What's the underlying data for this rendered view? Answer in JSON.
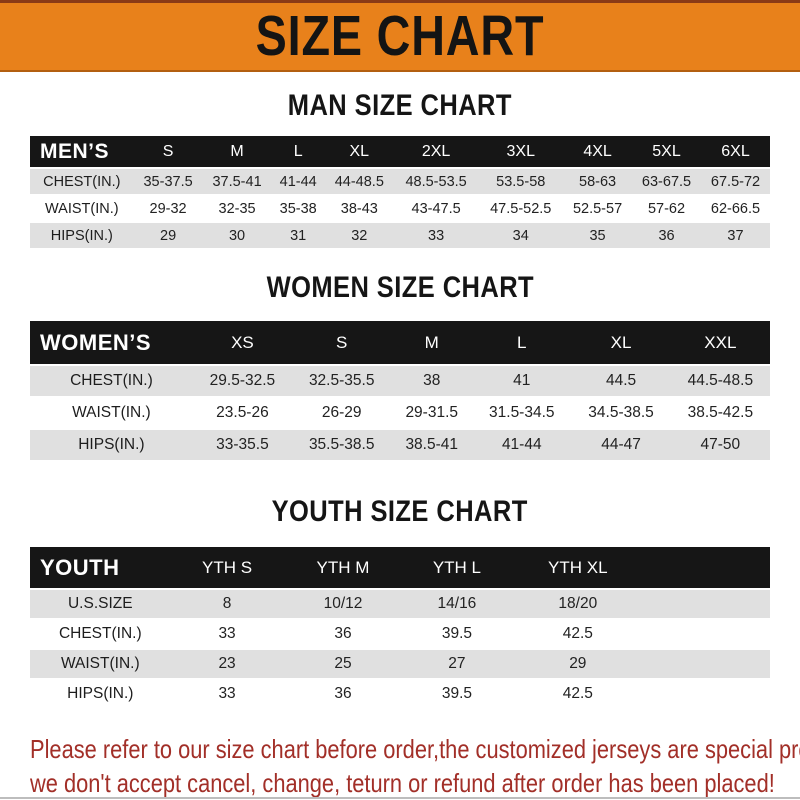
{
  "title": "SIZE CHART",
  "colors": {
    "banner_orange": "#E8811B",
    "header_bar_black": "#161616",
    "row_stripe_gray": "#E0E0E0",
    "footer_red": "#A22F28"
  },
  "sections": {
    "men": {
      "heading": "MAN SIZE CHART",
      "table": {
        "label": "MEN’S",
        "columns": [
          "S",
          "M",
          "L",
          "XL",
          "2XL",
          "3XL",
          "4XL",
          "5XL",
          "6XL"
        ],
        "rows": [
          {
            "label": "CHEST(IN.)",
            "values": [
              "35-37.5",
              "37.5-41",
              "41-44",
              "44-48.5",
              "48.5-53.5",
              "53.5-58",
              "58-63",
              "63-67.5",
              "67.5-72"
            ]
          },
          {
            "label": "WAIST(IN.)",
            "values": [
              "29-32",
              "32-35",
              "35-38",
              "38-43",
              "43-47.5",
              "47.5-52.5",
              "52.5-57",
              "57-62",
              "62-66.5"
            ]
          },
          {
            "label": "HIPS(IN.)",
            "values": [
              "29",
              "30",
              "31",
              "32",
              "33",
              "34",
              "35",
              "36",
              "37"
            ]
          }
        ]
      }
    },
    "women": {
      "heading": "WOMEN SIZE CHART",
      "table": {
        "label": "WOMEN’S",
        "columns": [
          "XS",
          "S",
          "M",
          "L",
          "XL",
          "XXL"
        ],
        "rows": [
          {
            "label": "CHEST(IN.)",
            "values": [
              "29.5-32.5",
              "32.5-35.5",
              "38",
              "41",
              "44.5",
              "44.5-48.5"
            ]
          },
          {
            "label": "WAIST(IN.)",
            "values": [
              "23.5-26",
              "26-29",
              "29-31.5",
              "31.5-34.5",
              "34.5-38.5",
              "38.5-42.5"
            ]
          },
          {
            "label": "HIPS(IN.)",
            "values": [
              "33-35.5",
              "35.5-38.5",
              "38.5-41",
              "41-44",
              "44-47",
              "47-50"
            ]
          }
        ]
      }
    },
    "youth": {
      "heading": "YOUTH SIZE CHART",
      "table": {
        "label": "YOUTH",
        "trailing_empty": true,
        "columns": [
          "YTH S",
          "YTH M",
          "YTH L",
          "YTH XL"
        ],
        "rows": [
          {
            "label": "U.S.SIZE",
            "values": [
              "8",
              "10/12",
              "14/16",
              "18/20"
            ]
          },
          {
            "label": "CHEST(IN.)",
            "values": [
              "33",
              "36",
              "39.5",
              "42.5"
            ]
          },
          {
            "label": "WAIST(IN.)",
            "values": [
              "23",
              "25",
              "27",
              "29"
            ]
          },
          {
            "label": "HIPS(IN.)",
            "values": [
              "33",
              "36",
              "39.5",
              "42.5"
            ]
          }
        ]
      }
    }
  },
  "footer": {
    "line1": "Please refer to our size chart before order,the customized jerseys are special products,",
    "line2": "we don't accept cancel, change, teturn or refund after order has been placed!"
  }
}
